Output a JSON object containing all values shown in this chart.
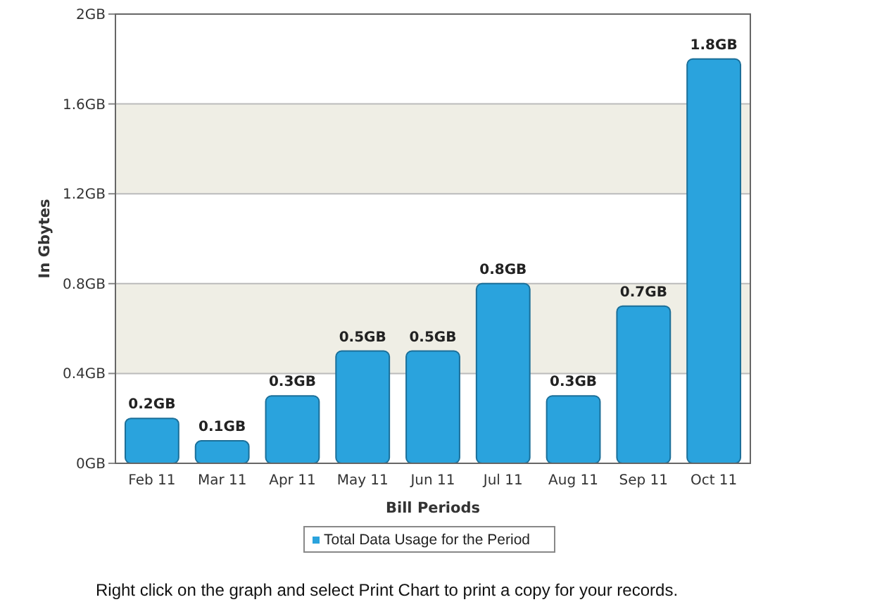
{
  "chart_data": {
    "type": "bar",
    "xlabel": "Bill Periods",
    "ylabel": "In Gbytes",
    "categories": [
      "Feb 11",
      "Mar 11",
      "Apr 11",
      "May 11",
      "Jun 11",
      "Jul 11",
      "Aug 11",
      "Sep 11",
      "Oct 11"
    ],
    "series": [
      {
        "name": "Total Data Usage for the Period",
        "color": "#2aa3dd",
        "values": [
          0.2,
          0.1,
          0.3,
          0.5,
          0.5,
          0.8,
          0.3,
          0.7,
          1.8
        ],
        "value_labels": [
          "0.2GB",
          "0.1GB",
          "0.3GB",
          "0.5GB",
          "0.5GB",
          "0.8GB",
          "0.3GB",
          "0.7GB",
          "1.8GB"
        ]
      }
    ],
    "ylim": [
      0,
      2
    ],
    "yticks": [
      {
        "value": 0,
        "label": "0GB"
      },
      {
        "value": 0.4,
        "label": "0.4GB"
      },
      {
        "value": 0.8,
        "label": "0.8GB"
      },
      {
        "value": 1.2,
        "label": "1.2GB"
      },
      {
        "value": 1.6,
        "label": "1.6GB"
      },
      {
        "value": 2,
        "label": "2GB"
      }
    ],
    "grid": "y",
    "legend": "bottom",
    "annotations": [
      "Right click on the graph and select Print Chart to print a copy for your records."
    ]
  }
}
